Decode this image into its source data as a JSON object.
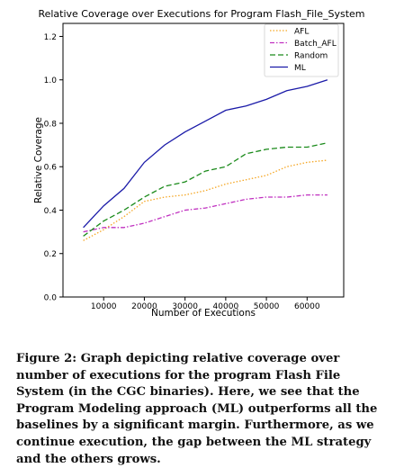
{
  "chart_data": {
    "type": "line",
    "title": "Relative Coverage over Executions for Program Flash_File_System",
    "xlabel": "Number of Executions",
    "ylabel": "Relative Coverage",
    "xlim": [
      0,
      69000
    ],
    "ylim": [
      0,
      1.26
    ],
    "xticks": [
      10000,
      20000,
      30000,
      40000,
      50000,
      60000
    ],
    "yticks": [
      0.0,
      0.2,
      0.4,
      0.6,
      0.8,
      1.0,
      1.2
    ],
    "xtick_labels": [
      "10000",
      "20000",
      "30000",
      "40000",
      "50000",
      "60000"
    ],
    "ytick_labels": [
      "0.0",
      "0.2",
      "0.4",
      "0.6",
      "0.8",
      "1.0",
      "1.2"
    ],
    "grid": false,
    "legend_position": "top-right",
    "x": [
      5000,
      10000,
      15000,
      20000,
      25000,
      30000,
      35000,
      40000,
      45000,
      50000,
      55000,
      60000,
      65000
    ],
    "series": [
      {
        "name": "AFL",
        "color": "#f5a623",
        "dash": "dotted",
        "values": [
          0.26,
          0.31,
          0.37,
          0.44,
          0.46,
          0.47,
          0.49,
          0.52,
          0.54,
          0.56,
          0.6,
          0.62,
          0.63
        ]
      },
      {
        "name": "Batch_AFL",
        "color": "#c030c0",
        "dash": "dashdot",
        "values": [
          0.3,
          0.32,
          0.32,
          0.34,
          0.37,
          0.4,
          0.41,
          0.43,
          0.45,
          0.46,
          0.46,
          0.47,
          0.47
        ]
      },
      {
        "name": "Random",
        "color": "#1a8a1a",
        "dash": "dashed",
        "values": [
          0.28,
          0.35,
          0.4,
          0.46,
          0.51,
          0.53,
          0.58,
          0.6,
          0.66,
          0.68,
          0.69,
          0.69,
          0.71
        ]
      },
      {
        "name": "ML",
        "color": "#1a1aa8",
        "dash": "solid",
        "values": [
          0.32,
          0.42,
          0.5,
          0.62,
          0.7,
          0.76,
          0.81,
          0.86,
          0.88,
          0.91,
          0.95,
          0.97,
          1.0
        ]
      }
    ]
  },
  "caption": "Figure 2: Graph depicting relative coverage over number of executions for the program Flash File System (in the CGC binaries). Here, we see that the Program Modeling approach (ML) outperforms all the baselines by a significant margin. Furthermore, as we continue execution, the gap between the ML strategy and the others grows."
}
